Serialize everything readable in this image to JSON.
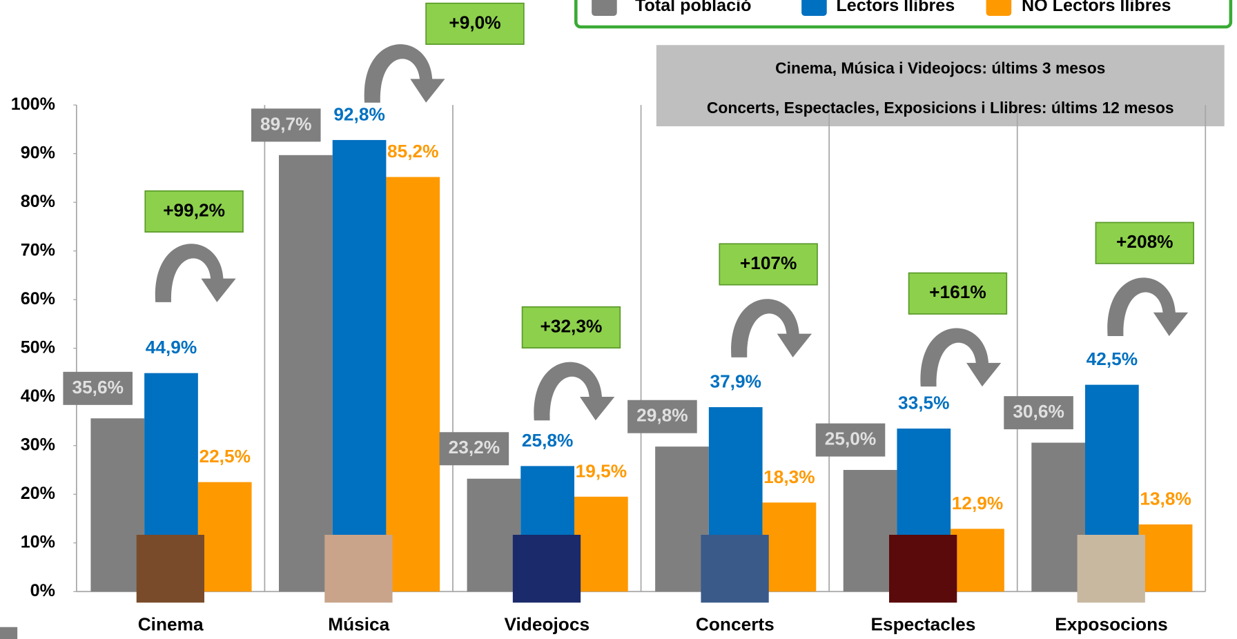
{
  "chart_data": {
    "type": "bar",
    "categories": [
      "Cinema",
      "Música",
      "Videojocs",
      "Concerts",
      "Espectacles",
      "Exposocions"
    ],
    "series": [
      {
        "name": "Total població",
        "color": "#7f7f7f",
        "values": [
          35.6,
          89.7,
          23.2,
          29.8,
          25.0,
          30.6
        ],
        "value_labels": [
          "35,6%",
          "89,7%",
          "23,2%",
          "29,8%",
          "25,0%",
          "30,6%"
        ]
      },
      {
        "name": "Lectors llibres",
        "color": "#0070c0",
        "values": [
          44.9,
          92.8,
          25.8,
          37.9,
          33.5,
          42.5
        ],
        "value_labels": [
          "44,9%",
          "92,8%",
          "25,8%",
          "37,9%",
          "33,5%",
          "42,5%"
        ]
      },
      {
        "name": "NO Lectors llibres",
        "color": "#ff9900",
        "values": [
          22.5,
          85.2,
          19.5,
          18.3,
          12.9,
          13.8
        ],
        "value_labels": [
          "22,5%",
          "85,2%",
          "19,5%",
          "18,3%",
          "12,9%",
          "13,8%"
        ]
      }
    ],
    "ylim": [
      0,
      100
    ],
    "yticks": [
      {
        "value": 0,
        "label": "0%"
      },
      {
        "value": 10,
        "label": "10%"
      },
      {
        "value": 20,
        "label": "20%"
      },
      {
        "value": 30,
        "label": "30%"
      },
      {
        "value": 40,
        "label": "40%"
      },
      {
        "value": 50,
        "label": "50%"
      },
      {
        "value": 60,
        "label": "60%"
      },
      {
        "value": 70,
        "label": "70%"
      },
      {
        "value": 80,
        "label": "80%"
      },
      {
        "value": 90,
        "label": "90%"
      },
      {
        "value": 100,
        "label": "100%"
      }
    ],
    "legend": "top-right",
    "notes": [
      "Cinema, Música i Videojocs: últims 3 mesos",
      "Concerts, Espectacles, Exposicions i Llibres: últims 12 mesos"
    ],
    "annotations": [
      "+99,2%",
      "+9,0%",
      "+32,3%",
      "+107%",
      "+161%",
      "+208%"
    ]
  }
}
